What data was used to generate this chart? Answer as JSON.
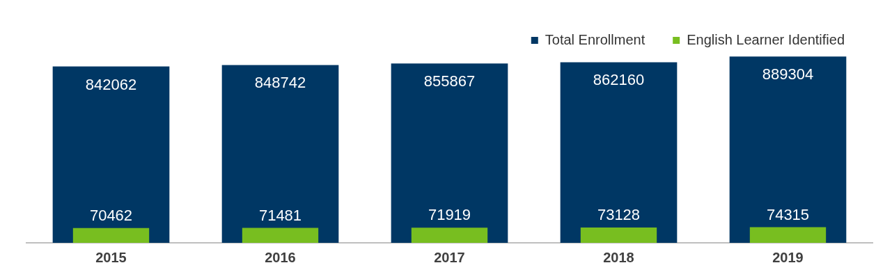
{
  "chart_data": {
    "type": "bar",
    "categories": [
      "2015",
      "2016",
      "2017",
      "2018",
      "2019"
    ],
    "series": [
      {
        "name": "Total Enrollment",
        "color": "#003764",
        "values": [
          842062,
          848742,
          855867,
          862160,
          889304
        ]
      },
      {
        "name": "English Learner Identified",
        "color": "#78be20",
        "values": [
          70462,
          71481,
          71919,
          73128,
          74315
        ]
      }
    ],
    "data_labels": true,
    "legend": "top right",
    "grid": false
  }
}
